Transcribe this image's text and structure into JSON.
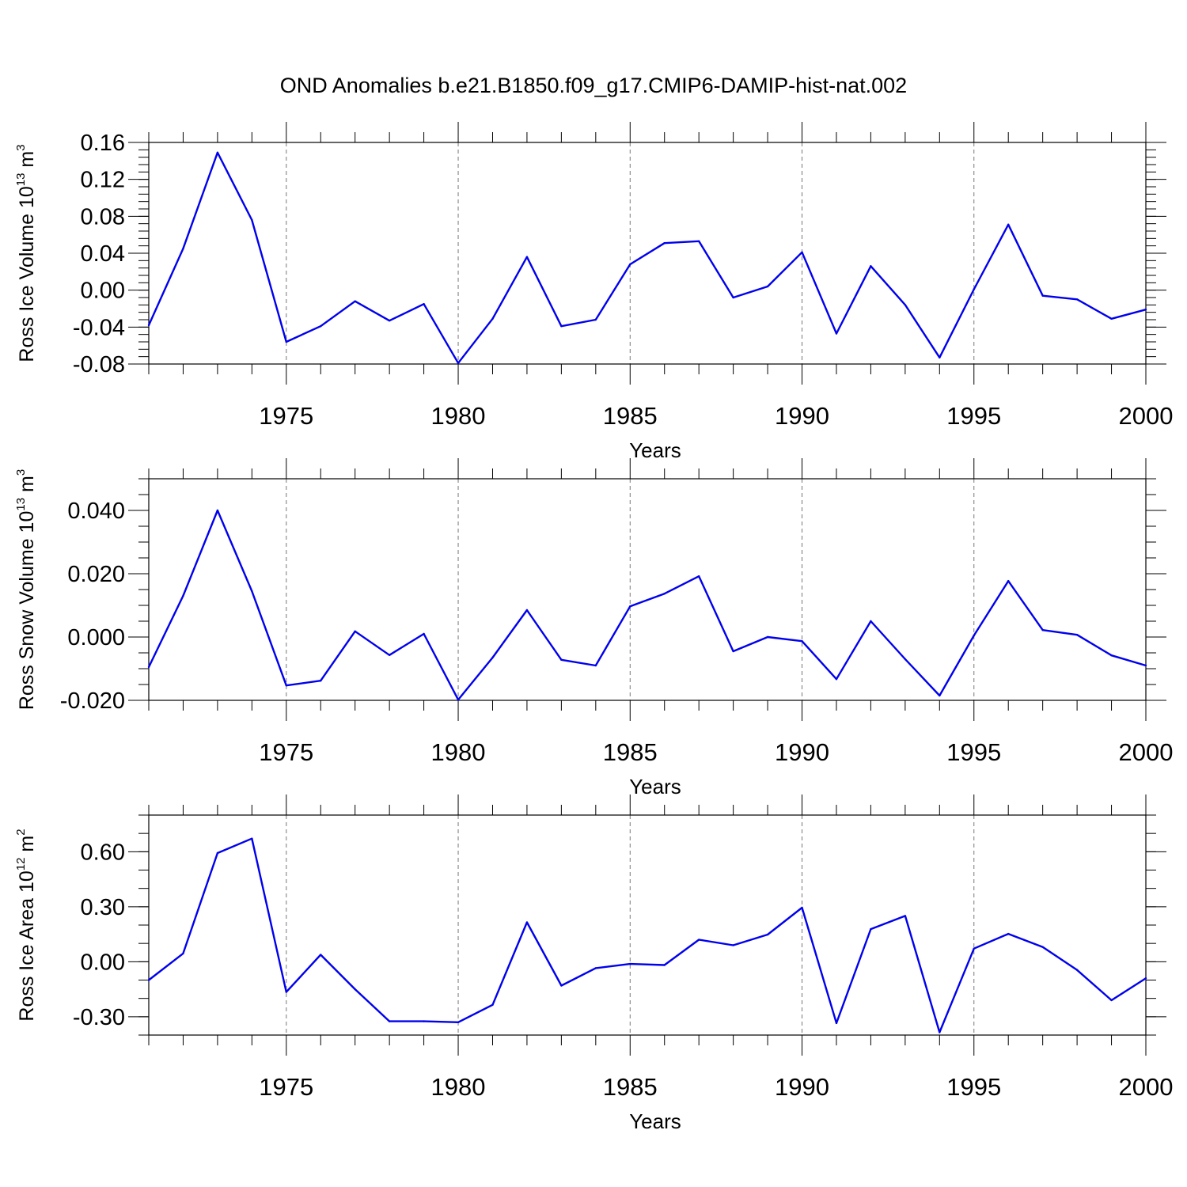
{
  "figure": {
    "title": "OND Anomalies b.e21.B1850.f09_g17.CMIP6-DAMIP-hist-nat.002"
  },
  "style": {
    "line_color": "#0000ee",
    "axis_color": "#000000",
    "grid_color": "#777777"
  },
  "chart_data": [
    {
      "type": "line",
      "ylabel": {
        "text": "Ross Ice Volume 10",
        "sup": "13",
        "unit": "m",
        "unit_sup": "3"
      },
      "xlabel": "Years",
      "xlim": [
        1971,
        2000
      ],
      "ylim": [
        -0.08,
        0.16
      ],
      "yticks": [
        -0.08,
        -0.04,
        0.0,
        0.04,
        0.08,
        0.12,
        0.16
      ],
      "ytick_labels": [
        "-0.08",
        "-0.04",
        "0.00",
        "0.04",
        "0.08",
        "0.12",
        "0.16"
      ],
      "yminor_step": 0.008,
      "xticks": [
        1975,
        1980,
        1985,
        1990,
        1995,
        2000
      ],
      "xtick_labels": [
        "1975",
        "1980",
        "1985",
        "1990",
        "1995",
        "2000"
      ],
      "vertical_grid": true,
      "x": [
        1971,
        1972,
        1973,
        1974,
        1975,
        1976,
        1977,
        1978,
        1979,
        1980,
        1981,
        1982,
        1983,
        1984,
        1985,
        1986,
        1987,
        1988,
        1989,
        1990,
        1991,
        1992,
        1993,
        1994,
        1995,
        1996,
        1997,
        1998,
        1999,
        2000
      ],
      "values": [
        -0.038,
        0.045,
        0.149,
        0.076,
        -0.056,
        -0.039,
        -0.012,
        -0.033,
        -0.015,
        -0.079,
        -0.031,
        0.036,
        -0.039,
        -0.032,
        0.028,
        0.051,
        0.053,
        -0.008,
        0.004,
        0.041,
        -0.047,
        0.026,
        -0.016,
        -0.073,
        0.001,
        0.071,
        -0.006,
        -0.01,
        -0.031,
        -0.021
      ]
    },
    {
      "type": "line",
      "ylabel": {
        "text": "Ross Snow Volume 10",
        "sup": "13",
        "unit": "m",
        "unit_sup": "3"
      },
      "xlabel": "Years",
      "xlim": [
        1971,
        2000
      ],
      "ylim": [
        -0.02,
        0.05
      ],
      "yticks": [
        -0.02,
        0.0,
        0.02,
        0.04
      ],
      "ytick_labels": [
        "-0.020",
        "0.000",
        "0.020",
        "0.040"
      ],
      "yminor_step": 0.005,
      "xticks": [
        1975,
        1980,
        1985,
        1990,
        1995,
        2000
      ],
      "xtick_labels": [
        "1975",
        "1980",
        "1985",
        "1990",
        "1995",
        "2000"
      ],
      "vertical_grid": true,
      "x": [
        1971,
        1972,
        1973,
        1974,
        1975,
        1976,
        1977,
        1978,
        1979,
        1980,
        1981,
        1982,
        1983,
        1984,
        1985,
        1986,
        1987,
        1988,
        1989,
        1990,
        1991,
        1992,
        1993,
        1994,
        1995,
        1996,
        1997,
        1998,
        1999,
        2000
      ],
      "values": [
        -0.0095,
        0.013,
        0.04,
        0.0145,
        -0.0153,
        -0.0138,
        0.0018,
        -0.0057,
        0.001,
        -0.0198,
        -0.0065,
        0.0085,
        -0.0072,
        -0.009,
        0.0097,
        0.0137,
        0.0192,
        -0.0045,
        0.0,
        -0.0013,
        -0.0133,
        0.005,
        -0.007,
        -0.0185,
        0.0005,
        0.0177,
        0.0022,
        0.0007,
        -0.0058,
        -0.009
      ]
    },
    {
      "type": "line",
      "ylabel": {
        "text": "Ross Ice Area 10",
        "sup": "12",
        "unit": "m",
        "unit_sup": "2"
      },
      "xlabel": "Years",
      "xlim": [
        1971,
        2000
      ],
      "ylim": [
        -0.4,
        0.8
      ],
      "yticks": [
        -0.3,
        0.0,
        0.3,
        0.6
      ],
      "ytick_labels": [
        "-0.30",
        "0.00",
        "0.30",
        "0.60"
      ],
      "yminor_step": 0.1,
      "xticks": [
        1975,
        1980,
        1985,
        1990,
        1995,
        2000
      ],
      "xtick_labels": [
        "1975",
        "1980",
        "1985",
        "1990",
        "1995",
        "2000"
      ],
      "vertical_grid": true,
      "x": [
        1971,
        1972,
        1973,
        1974,
        1975,
        1976,
        1977,
        1978,
        1979,
        1980,
        1981,
        1982,
        1983,
        1984,
        1985,
        1986,
        1987,
        1988,
        1989,
        1990,
        1991,
        1992,
        1993,
        1994,
        1995,
        1996,
        1997,
        1998,
        1999,
        2000
      ],
      "values": [
        -0.1,
        0.045,
        0.593,
        0.672,
        -0.165,
        0.038,
        -0.15,
        -0.325,
        -0.325,
        -0.33,
        -0.235,
        0.215,
        -0.13,
        -0.035,
        -0.012,
        -0.018,
        0.12,
        0.09,
        0.148,
        0.295,
        -0.335,
        0.178,
        0.25,
        -0.385,
        0.072,
        0.152,
        0.08,
        -0.045,
        -0.21,
        -0.09
      ]
    }
  ]
}
